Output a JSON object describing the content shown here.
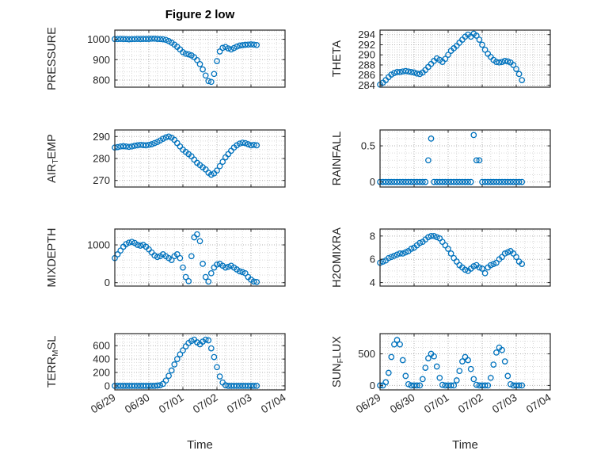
{
  "figure": {
    "title": "Figure 2 low",
    "xlabel": "Time",
    "accent_color": "#0072BD",
    "axis_color": "#262626",
    "grid_major_color": "#b0b0b0",
    "grid_minor_color": "#d9d9d9"
  },
  "chart_data": {
    "type": "scatter",
    "title": "Figure 2 low",
    "xlabel": "Time",
    "marker": "open-circle",
    "xlim": [
      0,
      5
    ],
    "xticks": [
      0,
      1,
      2,
      3,
      4,
      5
    ],
    "xtick_labels": [
      "06/29",
      "06/30",
      "07/01",
      "07/02",
      "07/03",
      "07/04"
    ],
    "x_minor_step": 0.25,
    "time_days": [
      0,
      0.083,
      0.167,
      0.25,
      0.333,
      0.417,
      0.5,
      0.583,
      0.667,
      0.75,
      0.833,
      0.917,
      1,
      1.083,
      1.167,
      1.25,
      1.333,
      1.417,
      1.5,
      1.583,
      1.667,
      1.75,
      1.833,
      1.917,
      2,
      2.083,
      2.167,
      2.25,
      2.333,
      2.417,
      2.5,
      2.583,
      2.667,
      2.75,
      2.833,
      2.917,
      3,
      3.083,
      3.167,
      3.25,
      3.333,
      3.417,
      3.5,
      3.583,
      3.667,
      3.75,
      3.833,
      3.917,
      4,
      4.083,
      4.167
    ],
    "subplots": [
      {
        "id": "pressure",
        "row": 0,
        "col": 0,
        "ylabel": "PRESSURE",
        "ylabel_parts": [
          {
            "text": "PRESSURE"
          }
        ],
        "ylim": [
          765,
          1045
        ],
        "yticks": [
          800,
          900,
          1000
        ],
        "ytick_labels": [
          "800",
          "900",
          "1000"
        ],
        "y_minor_step": 20,
        "values": [
          1001,
          1001,
          1002,
          1001,
          1001,
          1000,
          1001,
          1001,
          1002,
          1001,
          1002,
          1002,
          1002,
          1003,
          1003,
          1002,
          1001,
          1000,
          997,
          991,
          983,
          974,
          963,
          950,
          937,
          929,
          926,
          921,
          912,
          898,
          878,
          852,
          822,
          795,
          791,
          830,
          893,
          940,
          958,
          962,
          955,
          950,
          957,
          964,
          969,
          971,
          973,
          974,
          975,
          974,
          972
        ]
      },
      {
        "id": "air-temp",
        "row": 1,
        "col": 0,
        "ylabel": "AIR_TEMP",
        "ylabel_parts": [
          {
            "text": "AIR"
          },
          {
            "text": "T",
            "sub": true
          },
          {
            "text": "EMP"
          }
        ],
        "ylim": [
          267,
          293
        ],
        "yticks": [
          270,
          280,
          290
        ],
        "ytick_labels": [
          "270",
          "280",
          "290"
        ],
        "y_minor_step": 2,
        "values": [
          285.0,
          285.2,
          285.5,
          285.6,
          285.5,
          285.3,
          285.5,
          285.8,
          286.0,
          286.2,
          286.1,
          286.0,
          286.2,
          286.5,
          287.0,
          287.5,
          288.2,
          289.0,
          289.6,
          290.0,
          289.5,
          288.5,
          287.0,
          285.5,
          284.0,
          283.0,
          282.0,
          281.0,
          279.5,
          278.0,
          277.0,
          276.0,
          275.0,
          273.5,
          272.6,
          273.2,
          274.5,
          276.5,
          278.5,
          280.5,
          282.0,
          283.5,
          285.0,
          286.0,
          286.8,
          287.2,
          287.0,
          286.5,
          286.0,
          286.2,
          286.0
        ]
      },
      {
        "id": "mixdepth",
        "row": 2,
        "col": 0,
        "ylabel": "MIXDEPTH",
        "ylabel_parts": [
          {
            "text": "MIXDEPTH"
          }
        ],
        "ylim": [
          -90,
          1420
        ],
        "yticks": [
          0,
          1000
        ],
        "ytick_labels": [
          "0",
          "1000"
        ],
        "y_minor_step": 200,
        "values": [
          650,
          750,
          850,
          950,
          1020,
          1060,
          1080,
          1050,
          1000,
          980,
          1000,
          950,
          880,
          800,
          720,
          680,
          700,
          750,
          700,
          650,
          600,
          700,
          750,
          650,
          400,
          150,
          40,
          700,
          1200,
          1280,
          1100,
          500,
          150,
          30,
          250,
          400,
          480,
          500,
          450,
          400,
          420,
          450,
          400,
          350,
          300,
          280,
          250,
          150,
          80,
          30,
          20
        ]
      },
      {
        "id": "terr-msl",
        "row": 3,
        "col": 0,
        "ylabel": "TERR_MSL",
        "ylabel_parts": [
          {
            "text": "TERR"
          },
          {
            "text": "M",
            "sub": true
          },
          {
            "text": "SL"
          }
        ],
        "ylim": [
          -60,
          780
        ],
        "yticks": [
          0,
          200,
          400,
          600
        ],
        "ytick_labels": [
          "0",
          "200",
          "400",
          "600"
        ],
        "y_minor_step": 50,
        "values": [
          0,
          0,
          0,
          0,
          0,
          0,
          0,
          0,
          0,
          0,
          0,
          0,
          0,
          0,
          0,
          5,
          10,
          30,
          80,
          150,
          230,
          320,
          400,
          470,
          530,
          590,
          640,
          670,
          690,
          650,
          620,
          660,
          690,
          680,
          560,
          430,
          280,
          140,
          50,
          10,
          0,
          0,
          0,
          0,
          0,
          0,
          0,
          0,
          0,
          0,
          0
        ]
      },
      {
        "id": "theta",
        "row": 0,
        "col": 1,
        "ylabel": "THETA",
        "ylabel_parts": [
          {
            "text": "THETA"
          }
        ],
        "ylim": [
          283.6,
          294.9
        ],
        "yticks": [
          284,
          286,
          288,
          290,
          292,
          294
        ],
        "ytick_labels": [
          "284",
          "286",
          "288",
          "290",
          "292",
          "294"
        ],
        "y_minor_step": 0.5,
        "values": [
          284.1,
          284.5,
          285.0,
          285.6,
          286.1,
          286.4,
          286.6,
          286.6,
          286.7,
          286.8,
          286.7,
          286.6,
          286.5,
          286.3,
          286.2,
          286.5,
          287.0,
          287.6,
          288.2,
          288.8,
          289.3,
          289.0,
          288.6,
          289.2,
          290.0,
          290.8,
          291.3,
          291.8,
          292.4,
          293.0,
          293.6,
          294.0,
          293.6,
          294.2,
          293.8,
          293.0,
          292.0,
          291.0,
          290.2,
          289.6,
          289.0,
          288.6,
          288.5,
          288.6,
          288.8,
          288.7,
          288.5,
          288.0,
          287.2,
          286.2,
          285.0
        ]
      },
      {
        "id": "rainfall",
        "row": 1,
        "col": 1,
        "ylabel": "RAINFALL",
        "ylabel_parts": [
          {
            "text": "RAINFALL"
          }
        ],
        "ylim": [
          -0.07,
          0.72
        ],
        "yticks": [
          0,
          0.5
        ],
        "ytick_labels": [
          "0",
          "0.5"
        ],
        "y_minor_step": 0.1,
        "values": [
          0,
          0,
          0,
          0,
          0,
          0,
          0,
          0,
          0,
          0,
          0,
          0,
          0,
          0,
          0,
          0,
          0,
          0.3,
          0.6,
          0,
          0,
          0,
          0,
          0,
          0,
          0,
          0,
          0,
          0,
          0,
          0,
          0,
          0,
          0.65,
          0.3,
          0.3,
          0,
          0,
          0,
          0,
          0,
          0,
          0,
          0,
          0,
          0,
          0,
          0,
          0,
          0,
          0
        ]
      },
      {
        "id": "h2omixra",
        "row": 2,
        "col": 1,
        "ylabel": "H2OMIXRA",
        "ylabel_parts": [
          {
            "text": "H2OMIXRA"
          }
        ],
        "ylim": [
          3.7,
          8.6
        ],
        "yticks": [
          4,
          6,
          8
        ],
        "ytick_labels": [
          "4",
          "6",
          "8"
        ],
        "y_minor_step": 0.5,
        "values": [
          5.7,
          5.8,
          5.9,
          6.1,
          6.2,
          6.3,
          6.4,
          6.5,
          6.5,
          6.6,
          6.7,
          6.9,
          7.0,
          7.2,
          7.4,
          7.5,
          7.7,
          7.9,
          8.0,
          8.0,
          7.9,
          7.8,
          7.5,
          7.2,
          6.9,
          6.5,
          6.1,
          5.8,
          5.5,
          5.3,
          5.1,
          5.0,
          5.2,
          5.4,
          5.5,
          5.3,
          5.2,
          4.8,
          5.3,
          5.5,
          5.6,
          5.7,
          6.0,
          6.2,
          6.5,
          6.6,
          6.7,
          6.5,
          6.2,
          5.8,
          5.6
        ]
      },
      {
        "id": "sun-flux",
        "row": 3,
        "col": 1,
        "ylabel": "SUN_FLUX",
        "ylabel_parts": [
          {
            "text": "SUN"
          },
          {
            "text": "F",
            "sub": true
          },
          {
            "text": "LUX"
          }
        ],
        "ylim": [
          -70,
          820
        ],
        "yticks": [
          0,
          500
        ],
        "ytick_labels": [
          "0",
          "500"
        ],
        "y_minor_step": 100,
        "values": [
          0,
          0,
          50,
          200,
          450,
          650,
          720,
          650,
          400,
          150,
          20,
          0,
          0,
          0,
          0,
          100,
          280,
          430,
          500,
          460,
          300,
          120,
          10,
          0,
          0,
          0,
          0,
          80,
          230,
          380,
          450,
          400,
          260,
          100,
          10,
          0,
          0,
          0,
          0,
          120,
          330,
          520,
          600,
          560,
          380,
          150,
          20,
          0,
          0,
          0,
          0
        ]
      }
    ]
  }
}
